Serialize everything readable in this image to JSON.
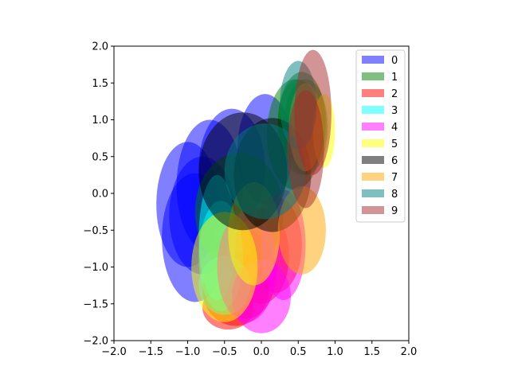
{
  "chart_data": {
    "type": "scatter",
    "marker": "ellipse",
    "title": "",
    "xlabel": "",
    "ylabel": "",
    "xlim": [
      -2.0,
      2.0
    ],
    "ylim": [
      -2.0,
      2.0
    ],
    "x_ticks": [
      -2.0,
      -1.5,
      -1.0,
      -0.5,
      0.0,
      0.5,
      1.0,
      1.5,
      2.0
    ],
    "y_ticks": [
      -2.0,
      -1.5,
      -1.0,
      -0.5,
      0.0,
      0.5,
      1.0,
      1.5,
      2.0
    ],
    "x_tick_labels": [
      "−2.0",
      "−1.5",
      "−1.0",
      "−0.5",
      "0.0",
      "0.5",
      "1.0",
      "1.5",
      "2.0"
    ],
    "y_tick_labels": [
      "−2.0",
      "−1.5",
      "−1.0",
      "−0.5",
      "0.0",
      "0.5",
      "1.0",
      "1.5",
      "2.0"
    ],
    "grid": false,
    "legend_position": "top-right",
    "opacity": 0.5,
    "series": [
      {
        "name": "0",
        "color": "#0000ff",
        "ellipses": [
          {
            "cx": -1.0,
            "cy": -0.15,
            "w": 0.85,
            "h": 1.7
          },
          {
            "cx": -0.9,
            "cy": -0.6,
            "w": 0.9,
            "h": 1.75
          },
          {
            "cx": -0.7,
            "cy": 0.1,
            "w": 0.9,
            "h": 1.8
          },
          {
            "cx": -0.4,
            "cy": 0.35,
            "w": 0.9,
            "h": 1.6
          },
          {
            "cx": 0.05,
            "cy": 0.6,
            "w": 0.75,
            "h": 1.5
          },
          {
            "cx": -0.8,
            "cy": -0.3,
            "w": 0.9,
            "h": 1.6
          }
        ]
      },
      {
        "name": "1",
        "color": "#008000",
        "ellipses": [
          {
            "cx": 0.55,
            "cy": 0.95,
            "w": 0.65,
            "h": 1.4
          },
          {
            "cx": 0.6,
            "cy": 0.9,
            "w": 0.6,
            "h": 1.3
          },
          {
            "cx": 0.45,
            "cy": 0.8,
            "w": 0.75,
            "h": 1.5
          },
          {
            "cx": 0.5,
            "cy": 1.0,
            "w": 0.55,
            "h": 1.1
          },
          {
            "cx": -0.3,
            "cy": -0.25,
            "w": 1.2,
            "h": 1.6
          }
        ]
      },
      {
        "name": "2",
        "color": "#ff0000",
        "ellipses": [
          {
            "cx": -0.35,
            "cy": -1.3,
            "w": 0.9,
            "h": 1.0
          },
          {
            "cx": -0.2,
            "cy": -1.1,
            "w": 0.8,
            "h": 1.2
          },
          {
            "cx": 0.0,
            "cy": -0.85,
            "w": 0.75,
            "h": 1.3
          },
          {
            "cx": 0.2,
            "cy": -0.7,
            "w": 0.7,
            "h": 1.3
          },
          {
            "cx": -0.45,
            "cy": -1.55,
            "w": 0.7,
            "h": 0.6
          }
        ]
      },
      {
        "name": "3",
        "color": "#00ffff",
        "ellipses": [
          {
            "cx": -0.6,
            "cy": -0.6,
            "w": 0.5,
            "h": 1.7
          },
          {
            "cx": -0.55,
            "cy": -0.85,
            "w": 0.6,
            "h": 1.5
          },
          {
            "cx": -0.5,
            "cy": -1.25,
            "w": 0.7,
            "h": 0.8
          }
        ]
      },
      {
        "name": "4",
        "color": "#ff00ff",
        "ellipses": [
          {
            "cx": 0.0,
            "cy": -1.4,
            "w": 0.8,
            "h": 1.0
          },
          {
            "cx": 0.3,
            "cy": -0.7,
            "w": 0.6,
            "h": 1.5
          },
          {
            "cx": -0.2,
            "cy": -1.0,
            "w": 0.8,
            "h": 1.5
          }
        ]
      },
      {
        "name": "5",
        "color": "#ffff00",
        "ellipses": [
          {
            "cx": 0.85,
            "cy": 0.85,
            "w": 0.3,
            "h": 1.0
          },
          {
            "cx": -0.5,
            "cy": -1.0,
            "w": 0.9,
            "h": 1.5
          },
          {
            "cx": -0.1,
            "cy": -0.55,
            "w": 0.7,
            "h": 1.4
          }
        ]
      },
      {
        "name": "6",
        "color": "#000000",
        "ellipses": [
          {
            "cx": 0.15,
            "cy": 0.25,
            "w": 1.05,
            "h": 1.55
          },
          {
            "cx": -0.25,
            "cy": 0.3,
            "w": 1.2,
            "h": 1.6
          }
        ]
      },
      {
        "name": "7",
        "color": "#ffa500",
        "ellipses": [
          {
            "cx": 0.55,
            "cy": -0.5,
            "w": 0.65,
            "h": 1.2
          },
          {
            "cx": 0.6,
            "cy": 0.9,
            "w": 0.45,
            "h": 1.2
          }
        ]
      },
      {
        "name": "8",
        "color": "#008080",
        "ellipses": [
          {
            "cx": 0.5,
            "cy": 1.2,
            "w": 0.5,
            "h": 1.2
          },
          {
            "cx": 0.05,
            "cy": 0.3,
            "w": 1.1,
            "h": 1.3
          }
        ]
      },
      {
        "name": "9",
        "color": "#a52a2a",
        "ellipses": [
          {
            "cx": 0.7,
            "cy": 1.1,
            "w": 0.5,
            "h": 1.7
          },
          {
            "cx": 0.6,
            "cy": 0.6,
            "w": 0.5,
            "h": 1.6
          }
        ]
      }
    ]
  }
}
